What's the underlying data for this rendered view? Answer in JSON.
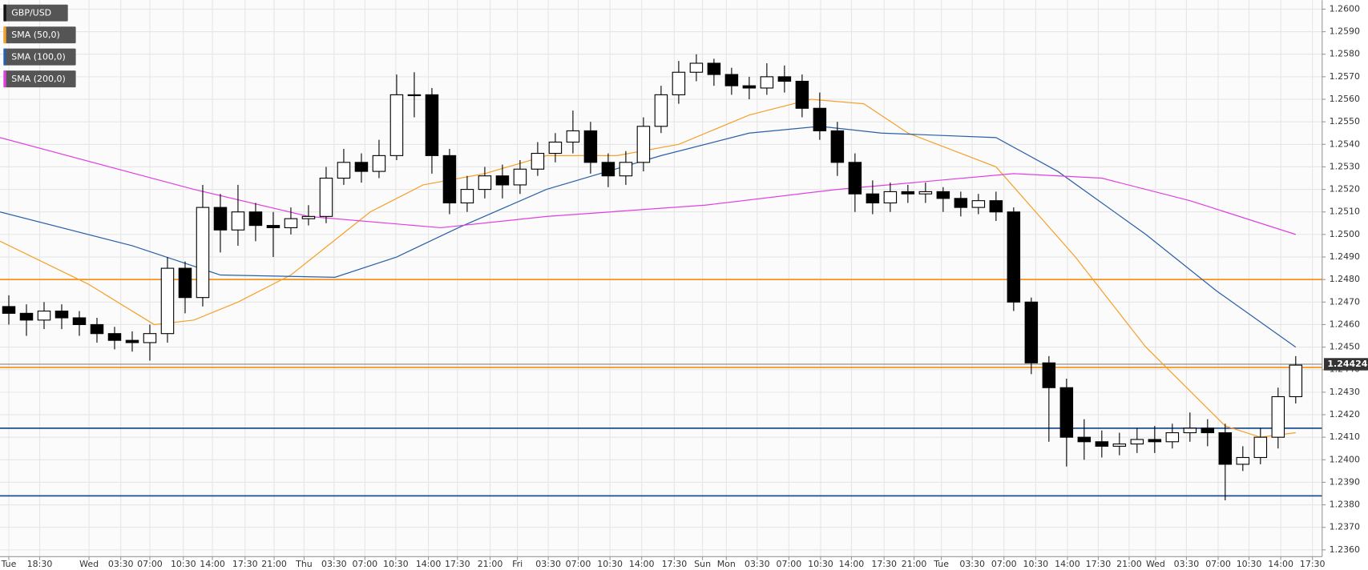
{
  "chart_data": {
    "type": "candlestick",
    "legend": [
      "GBP/USD",
      "SMA (50,0)",
      "SMA (100,0)",
      "SMA (200,0)"
    ],
    "legend_colors": [
      "#111111",
      "#f5a02a",
      "#2b5fa8",
      "#e040e0"
    ],
    "x": [
      1,
      3,
      5,
      7,
      9,
      11,
      13,
      15,
      17,
      19,
      21,
      23,
      25,
      27,
      29,
      31,
      33,
      35,
      37,
      39,
      41,
      43,
      45,
      47,
      49,
      51,
      53,
      55,
      57,
      59,
      61,
      63,
      65,
      67,
      69,
      71,
      73,
      75,
      77,
      79,
      81,
      83,
      85,
      87,
      89,
      91,
      93,
      95,
      97,
      99,
      101,
      103,
      105,
      107,
      109,
      111,
      113,
      115,
      117,
      119,
      121,
      123,
      125,
      127,
      129,
      131,
      133,
      135,
      137,
      139,
      141,
      143,
      145,
      147
    ],
    "open": [
      1.2468,
      1.2465,
      1.2462,
      1.2466,
      1.2463,
      1.246,
      1.2456,
      1.2453,
      1.2452,
      1.2456,
      1.2485,
      1.2472,
      1.2512,
      1.2502,
      1.251,
      1.2504,
      1.2503,
      1.2507,
      1.2508,
      1.2525,
      1.2532,
      1.2528,
      1.2535,
      1.2562,
      1.2562,
      1.2535,
      1.2514,
      1.252,
      1.2526,
      1.2522,
      1.2529,
      1.2536,
      1.2541,
      1.2546,
      1.2532,
      1.2526,
      1.2532,
      1.2548,
      1.2562,
      1.2572,
      1.2576,
      1.2571,
      1.2566,
      1.2565,
      1.257,
      1.2568,
      1.2556,
      1.2546,
      1.2532,
      1.2518,
      1.2514,
      1.2519,
      1.2518,
      1.2519,
      1.2516,
      1.2512,
      1.2515,
      1.251,
      1.247,
      1.2443,
      1.2432,
      1.241,
      1.2408,
      1.2406,
      1.2407,
      1.2409,
      1.2408,
      1.2412,
      1.2414,
      1.2412,
      1.2398,
      1.2401,
      1.241,
      1.2428
    ],
    "high": [
      1.2473,
      1.2469,
      1.247,
      1.2469,
      1.2466,
      1.2463,
      1.2459,
      1.2457,
      1.246,
      1.249,
      1.2488,
      1.2522,
      1.2518,
      1.2522,
      1.2514,
      1.251,
      1.2512,
      1.2513,
      1.253,
      1.2538,
      1.2536,
      1.2542,
      1.2571,
      1.2572,
      1.2565,
      1.2538,
      1.2526,
      1.253,
      1.2531,
      1.2533,
      1.2541,
      1.2545,
      1.2555,
      1.255,
      1.2536,
      1.2537,
      1.2552,
      1.2566,
      1.2577,
      1.258,
      1.2578,
      1.2574,
      1.257,
      1.2576,
      1.2575,
      1.2571,
      1.2563,
      1.255,
      1.2536,
      1.2524,
      1.2523,
      1.2522,
      1.2523,
      1.2521,
      1.2519,
      1.2518,
      1.2519,
      1.2512,
      1.2472,
      1.2446,
      1.2436,
      1.2418,
      1.2413,
      1.2412,
      1.2414,
      1.2415,
      1.2416,
      1.2421,
      1.2418,
      1.2416,
      1.2406,
      1.2414,
      1.2432,
      1.2446
    ],
    "low": [
      1.246,
      1.2455,
      1.2458,
      1.2458,
      1.2455,
      1.2452,
      1.2449,
      1.2448,
      1.2444,
      1.2452,
      1.2465,
      1.2468,
      1.2492,
      1.2495,
      1.2497,
      1.249,
      1.25,
      1.2504,
      1.2505,
      1.2522,
      1.2523,
      1.2525,
      1.2533,
      1.2552,
      1.2527,
      1.2509,
      1.251,
      1.2516,
      1.2516,
      1.2518,
      1.2526,
      1.2532,
      1.2536,
      1.2527,
      1.2521,
      1.2522,
      1.2528,
      1.2545,
      1.2558,
      1.2568,
      1.2566,
      1.2562,
      1.256,
      1.2562,
      1.2563,
      1.2552,
      1.2542,
      1.2526,
      1.251,
      1.2509,
      1.251,
      1.2514,
      1.2514,
      1.251,
      1.2508,
      1.2509,
      1.2506,
      1.2466,
      1.2438,
      1.2408,
      1.2397,
      1.24,
      1.2401,
      1.2402,
      1.2403,
      1.2403,
      1.2405,
      1.2408,
      1.2406,
      1.2382,
      1.2395,
      1.2398,
      1.2405,
      1.2425
    ],
    "close": [
      1.2465,
      1.2462,
      1.2466,
      1.2463,
      1.246,
      1.2456,
      1.2453,
      1.2452,
      1.2456,
      1.2485,
      1.2472,
      1.2512,
      1.2502,
      1.251,
      1.2504,
      1.2503,
      1.2507,
      1.2508,
      1.2525,
      1.2532,
      1.2528,
      1.2535,
      1.2562,
      1.2562,
      1.2535,
      1.2514,
      1.252,
      1.2526,
      1.2522,
      1.2529,
      1.2536,
      1.2541,
      1.2546,
      1.2532,
      1.2526,
      1.2532,
      1.2548,
      1.2562,
      1.2572,
      1.2576,
      1.2571,
      1.2566,
      1.2565,
      1.257,
      1.2568,
      1.2556,
      1.2546,
      1.2532,
      1.2518,
      1.2514,
      1.2519,
      1.2518,
      1.2519,
      1.2516,
      1.2512,
      1.2515,
      1.251,
      1.247,
      1.2443,
      1.2432,
      1.241,
      1.2408,
      1.2406,
      1.2407,
      1.2409,
      1.2408,
      1.2412,
      1.2414,
      1.2412,
      1.2398,
      1.2401,
      1.241,
      1.2428,
      1.2442
    ],
    "series": [
      {
        "name": "SMA (50,0)",
        "color": "#f5a02a",
        "x": [
          0,
          10,
          17.5,
          22,
          27,
          33,
          42,
          48,
          55,
          62,
          70,
          77,
          85,
          92,
          98,
          103,
          113,
          122,
          130,
          139,
          143,
          147
        ],
        "values": [
          1.2497,
          1.2478,
          1.246,
          1.2462,
          1.247,
          1.2482,
          1.251,
          1.2522,
          1.2527,
          1.2535,
          1.2535,
          1.254,
          1.2553,
          1.256,
          1.2558,
          1.2545,
          1.253,
          1.249,
          1.245,
          1.2415,
          1.241,
          1.2412
        ]
      },
      {
        "name": "SMA (100,0)",
        "color": "#2b5fa8",
        "x": [
          0,
          15,
          25,
          38,
          45,
          52,
          62,
          75,
          85,
          93,
          100,
          113,
          120,
          130,
          138,
          147
        ],
        "values": [
          1.251,
          1.2495,
          1.2482,
          1.2481,
          1.249,
          1.2503,
          1.252,
          1.2535,
          1.2545,
          1.2548,
          1.2545,
          1.2543,
          1.2528,
          1.25,
          1.2475,
          1.245
        ]
      },
      {
        "name": "SMA (200,0)",
        "color": "#e040e0",
        "x": [
          0,
          22,
          35,
          50,
          62,
          80,
          95,
          115,
          125,
          135,
          147
        ],
        "values": [
          1.2543,
          1.252,
          1.2508,
          1.2503,
          1.2508,
          1.2513,
          1.252,
          1.2527,
          1.2525,
          1.2515,
          1.25
        ]
      }
    ],
    "levels": [
      {
        "value": 1.248,
        "color": "#f7931e"
      },
      {
        "value": 1.2441,
        "color": "#f7931e"
      },
      {
        "value": 1.2414,
        "color": "#1f4e8c"
      },
      {
        "value": 1.2384,
        "color": "#1f4e8c"
      }
    ],
    "last_price": 1.24424,
    "xlim": [
      0,
      150
    ],
    "ylim": [
      1.2357,
      1.2604
    ],
    "grid": true,
    "yticks": [
      {
        "value": 1.236,
        "label": "1.2360"
      },
      {
        "value": 1.237,
        "label": "1.2370"
      },
      {
        "value": 1.238,
        "label": "1.2380"
      },
      {
        "value": 1.239,
        "label": "1.2390"
      },
      {
        "value": 1.24,
        "label": "1.2400"
      },
      {
        "value": 1.241,
        "label": "1.2410"
      },
      {
        "value": 1.242,
        "label": "1.2420"
      },
      {
        "value": 1.243,
        "label": "1.2430"
      },
      {
        "value": 1.244,
        "label": "1.2440"
      },
      {
        "value": 1.245,
        "label": "1.2450"
      },
      {
        "value": 1.246,
        "label": "1.2460"
      },
      {
        "value": 1.247,
        "label": "1.2470"
      },
      {
        "value": 1.248,
        "label": "1.2480"
      },
      {
        "value": 1.249,
        "label": "1.2490"
      },
      {
        "value": 1.25,
        "label": "1.2500"
      },
      {
        "value": 1.251,
        "label": "1.2510"
      },
      {
        "value": 1.252,
        "label": "1.2520"
      },
      {
        "value": 1.253,
        "label": "1.2530"
      },
      {
        "value": 1.254,
        "label": "1.2540"
      },
      {
        "value": 1.255,
        "label": "1.2550"
      },
      {
        "value": 1.256,
        "label": "1.2560"
      },
      {
        "value": 1.257,
        "label": "1.2570"
      },
      {
        "value": 1.258,
        "label": "1.2580"
      },
      {
        "value": 1.259,
        "label": "1.2590"
      },
      {
        "value": 1.26,
        "label": "1.2600"
      }
    ],
    "xticks": [
      {
        "value": 1.0,
        "label": "Tue"
      },
      {
        "value": 4.5,
        "label": "18:30"
      },
      {
        "value": 10.1,
        "label": "Wed"
      },
      {
        "value": 13.7,
        "label": "03:30"
      },
      {
        "value": 17.0,
        "label": "07:00"
      },
      {
        "value": 20.8,
        "label": "10:30"
      },
      {
        "value": 24.1,
        "label": "14:00"
      },
      {
        "value": 27.8,
        "label": "17:30"
      },
      {
        "value": 31.1,
        "label": "21:00"
      },
      {
        "value": 34.5,
        "label": "Thu"
      },
      {
        "value": 37.9,
        "label": "03:30"
      },
      {
        "value": 41.4,
        "label": "07:00"
      },
      {
        "value": 44.9,
        "label": "10:30"
      },
      {
        "value": 48.6,
        "label": "14:00"
      },
      {
        "value": 51.9,
        "label": "17:30"
      },
      {
        "value": 55.6,
        "label": "21:00"
      },
      {
        "value": 58.7,
        "label": "Fri"
      },
      {
        "value": 62.2,
        "label": "03:30"
      },
      {
        "value": 65.6,
        "label": "07:00"
      },
      {
        "value": 69.2,
        "label": "10:30"
      },
      {
        "value": 72.8,
        "label": "14:00"
      },
      {
        "value": 76.5,
        "label": "17:30"
      },
      {
        "value": 79.7,
        "label": "Sun"
      },
      {
        "value": 82.4,
        "label": "Mon"
      },
      {
        "value": 85.9,
        "label": "03:30"
      },
      {
        "value": 89.5,
        "label": "07:00"
      },
      {
        "value": 93.1,
        "label": "10:30"
      },
      {
        "value": 96.6,
        "label": "14:00"
      },
      {
        "value": 100.3,
        "label": "17:30"
      },
      {
        "value": 103.7,
        "label": "21:00"
      },
      {
        "value": 106.8,
        "label": "Tue"
      },
      {
        "value": 110.3,
        "label": "03:30"
      },
      {
        "value": 113.9,
        "label": "07:00"
      },
      {
        "value": 117.5,
        "label": "10:30"
      },
      {
        "value": 121.1,
        "label": "14:00"
      },
      {
        "value": 124.6,
        "label": "17:30"
      },
      {
        "value": 128.1,
        "label": "21:00"
      },
      {
        "value": 131.1,
        "label": "Wed"
      },
      {
        "value": 134.6,
        "label": "03:30"
      },
      {
        "value": 138.2,
        "label": "07:00"
      },
      {
        "value": 141.7,
        "label": "10:30"
      },
      {
        "value": 145.3,
        "label": "14:00"
      },
      {
        "value": 148.9,
        "label": "17:30"
      }
    ]
  }
}
